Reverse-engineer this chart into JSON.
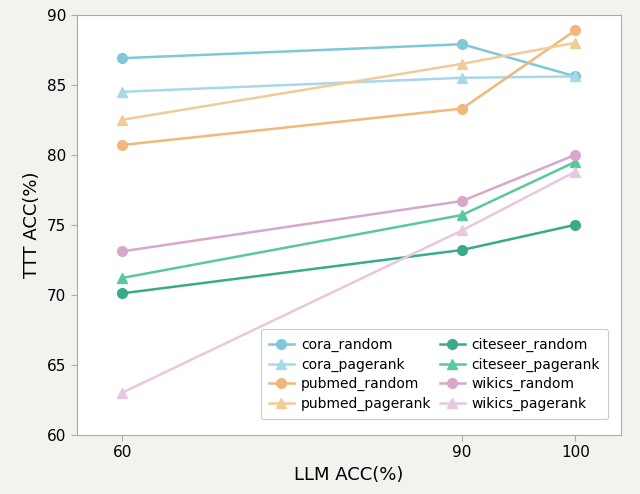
{
  "x": [
    60,
    90,
    100
  ],
  "series": [
    {
      "label": "cora_random",
      "values": [
        86.9,
        87.9,
        85.6
      ],
      "color": "#7ec8d8",
      "marker": "o",
      "linestyle": "-"
    },
    {
      "label": "cora_pagerank",
      "values": [
        84.5,
        85.5,
        85.6
      ],
      "color": "#a8d8e8",
      "marker": "^",
      "linestyle": "-"
    },
    {
      "label": "pubmed_random",
      "values": [
        80.7,
        83.3,
        88.9
      ],
      "color": "#f0b87c",
      "marker": "o",
      "linestyle": "-"
    },
    {
      "label": "pubmed_pagerank",
      "values": [
        82.5,
        86.5,
        88.0
      ],
      "color": "#f0cc98",
      "marker": "^",
      "linestyle": "-"
    },
    {
      "label": "citeseer_random",
      "values": [
        70.1,
        73.2,
        75.0
      ],
      "color": "#3aaa8a",
      "marker": "o",
      "linestyle": "-"
    },
    {
      "label": "citeseer_pagerank",
      "values": [
        71.2,
        75.7,
        79.5
      ],
      "color": "#5ac89c",
      "marker": "^",
      "linestyle": "-"
    },
    {
      "label": "wikics_random",
      "values": [
        73.1,
        76.7,
        80.0
      ],
      "color": "#d8a8cc",
      "marker": "o",
      "linestyle": "-"
    },
    {
      "label": "wikics_pagerank",
      "values": [
        63.0,
        74.6,
        78.8
      ],
      "color": "#e8c8e0",
      "marker": "^",
      "linestyle": "-"
    }
  ],
  "xlabel": "LLM ACC(%)",
  "ylabel": "TTT ACC(%)",
  "ylim": [
    60,
    90
  ],
  "xlim": [
    56,
    104
  ],
  "xticks": [
    60,
    90,
    100
  ],
  "yticks": [
    60,
    65,
    70,
    75,
    80,
    85,
    90
  ],
  "background_color": "#ffffff",
  "fig_facecolor": "#f2f2ee",
  "legend_ncol": 2,
  "xlabel_fontsize": 13,
  "ylabel_fontsize": 13,
  "tick_fontsize": 11,
  "legend_fontsize": 10,
  "linewidth": 1.8,
  "markersize": 7
}
